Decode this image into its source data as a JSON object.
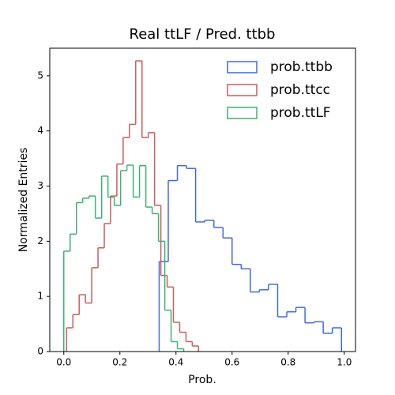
{
  "chart_data": {
    "type": "histogram",
    "title": "Real ttLF / Pred. ttbb",
    "xlabel": "Prob.",
    "ylabel": "Normalized Entries",
    "xlim": [
      -0.05,
      1.04
    ],
    "ylim": [
      0,
      5.5
    ],
    "xticks": [
      {
        "value": 0,
        "label": "0.0"
      },
      0.2,
      0.4,
      0.6,
      0.8,
      {
        "value": 1,
        "label": "1.0"
      }
    ],
    "yticks": [
      0,
      1,
      2,
      3,
      4,
      5
    ],
    "legend": "upper right",
    "histtype": "step",
    "series": [
      {
        "name": "prob.ttbb",
        "color": "#4169e1",
        "bins": [
          0.34,
          0.3725,
          0.405,
          0.4375,
          0.47,
          0.5025,
          0.535,
          0.5675,
          0.6,
          0.6325,
          0.665,
          0.6975,
          0.73,
          0.7625,
          0.795,
          0.8275,
          0.86,
          0.8925,
          0.925,
          0.9575,
          0.99
        ],
        "values": [
          1.63,
          3.1,
          3.37,
          3.32,
          2.35,
          2.38,
          2.25,
          2.06,
          1.58,
          1.5,
          1.08,
          1.12,
          1.22,
          0.63,
          0.72,
          0.8,
          0.52,
          0.54,
          0.33,
          0.43
        ]
      },
      {
        "name": "prob.ttcc",
        "color": "#cd5c5c",
        "bins": [
          0.01,
          0.0324,
          0.0548,
          0.0772,
          0.0996,
          0.122,
          0.1444,
          0.1668,
          0.1892,
          0.2116,
          0.234,
          0.2564,
          0.2788,
          0.3012,
          0.3236,
          0.346,
          0.3684,
          0.3908,
          0.4132,
          0.4356,
          0.458,
          0.4804
        ],
        "values": [
          0.43,
          0.67,
          1.03,
          0.88,
          1.52,
          1.88,
          2.32,
          2.82,
          3.4,
          3.88,
          4.12,
          5.27,
          3.88,
          3.97,
          2.65,
          1.38,
          1.17,
          0.53,
          0.35,
          0.18,
          0.1
        ]
      },
      {
        "name": "prob.ttLF",
        "color": "#3cb371",
        "bins": [
          0,
          0.0225,
          0.045,
          0.0675,
          0.09,
          0.1125,
          0.135,
          0.1575,
          0.18,
          0.2025,
          0.225,
          0.2475,
          0.27,
          0.2925,
          0.315,
          0.3375,
          0.36,
          0.3825,
          0.405,
          0.4275
        ],
        "values": [
          1.82,
          2.13,
          2.7,
          2.78,
          2.82,
          2.42,
          3.18,
          2.8,
          2.65,
          3.28,
          3.38,
          2.8,
          3.37,
          2.62,
          2.5,
          2.0,
          0.75,
          0.18,
          0.05
        ]
      }
    ]
  }
}
